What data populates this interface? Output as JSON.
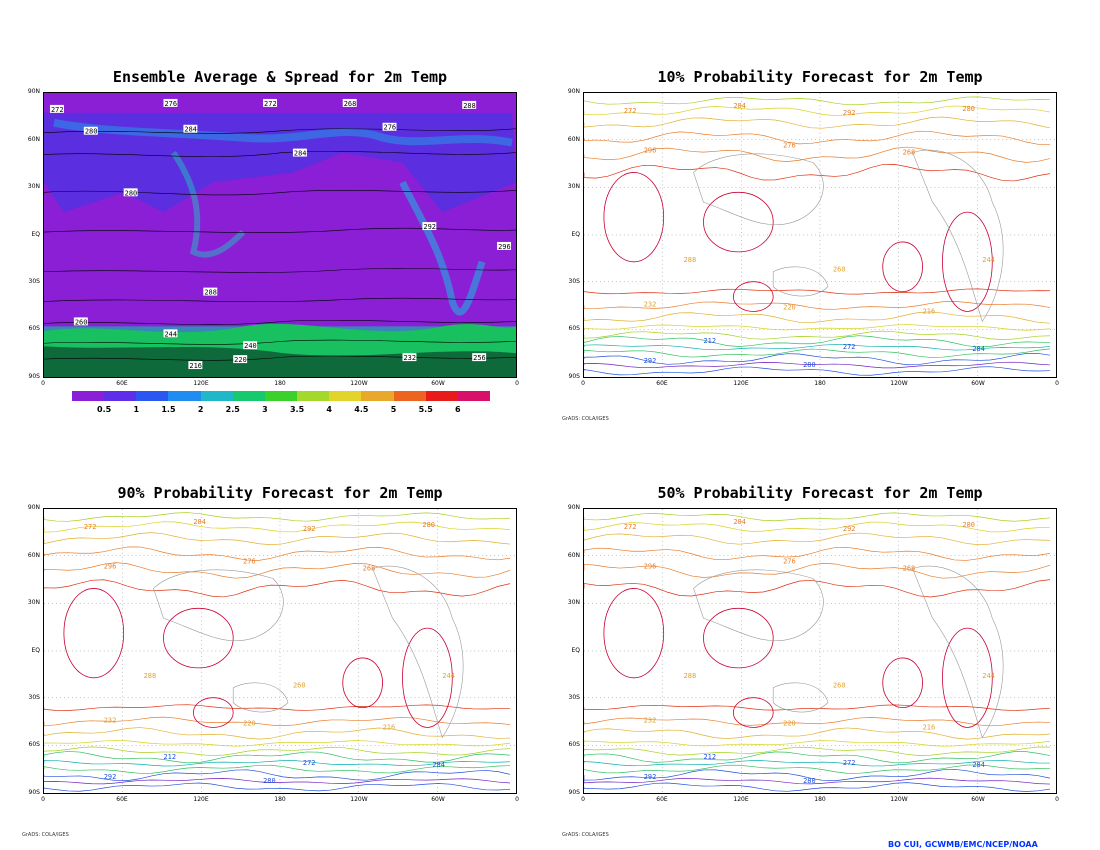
{
  "panels": [
    {
      "id": "ens",
      "title": "Ensemble Average & Spread for 2m Temp",
      "credit": ""
    },
    {
      "id": "p10",
      "title": "10% Probability Forecast for 2m Temp",
      "credit": "GrADS: COLA/IGES"
    },
    {
      "id": "p90",
      "title": "90% Probability Forecast for 2m Temp",
      "credit": "GrADS: COLA/IGES"
    },
    {
      "id": "p50",
      "title": "50% Probability Forecast for 2m Temp",
      "credit": "GrADS: COLA/IGES"
    }
  ],
  "lat_labels": [
    "90N",
    "60N",
    "30N",
    "EQ",
    "30S",
    "60S",
    "90S"
  ],
  "lon_labels": [
    "0",
    "60E",
    "120E",
    "180",
    "120W",
    "60W",
    "0"
  ],
  "colorbar": {
    "labels": [
      "0.5",
      "1",
      "1.5",
      "2",
      "2.5",
      "3",
      "3.5",
      "4",
      "4.5",
      "5",
      "5.5",
      "6"
    ],
    "colors": [
      "#8a1fd6",
      "#5e2ee8",
      "#2a57f0",
      "#1e8cf0",
      "#20b8c8",
      "#16c86e",
      "#3ad22a",
      "#a4d82a",
      "#e2d42a",
      "#e8a82a",
      "#ec6420",
      "#e81a1a",
      "#d8106a"
    ]
  },
  "ens_values": [
    "272",
    "276",
    "272",
    "280",
    "284",
    "268",
    "288",
    "276",
    "284",
    "280",
    "292",
    "296",
    "288",
    "244",
    "240",
    "232",
    "260",
    "256",
    "220",
    "216"
  ],
  "contour_values": [
    "272",
    "284",
    "292",
    "280",
    "296",
    "276",
    "268",
    "288",
    "260",
    "244",
    "232",
    "220",
    "216",
    "212"
  ],
  "contour_colors": [
    "#cc0033",
    "#e03010",
    "#e87c2a",
    "#e0b030",
    "#d8d020",
    "#a8d020",
    "#30c060",
    "#10b0b0",
    "#2050e0",
    "#7020c0"
  ],
  "footer_credit": "GrADS: COLA/IGES",
  "noaa_credit": "BO CUI, GCWMB/EMC/NCEP/NOAA"
}
